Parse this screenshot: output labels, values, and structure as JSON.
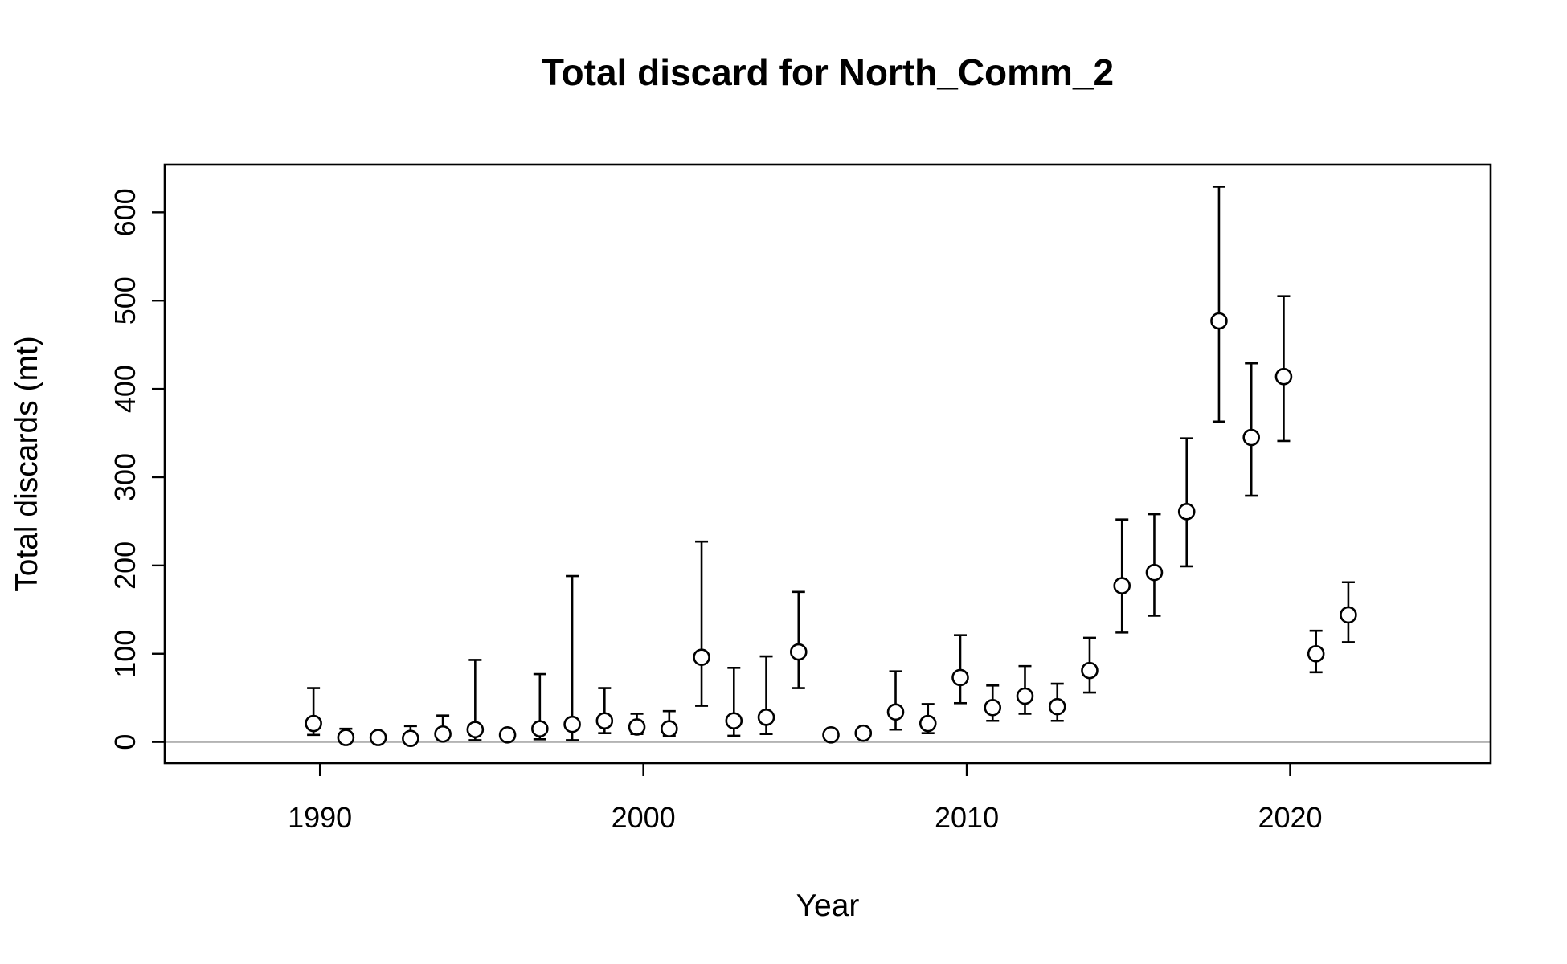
{
  "chart_data": {
    "type": "scatter",
    "title": "Total discard for North_Comm_2",
    "xlabel": "Year",
    "ylabel": "Total discards (mt)",
    "xlim": [
      1985.2,
      2026.2
    ],
    "ylim": [
      -24,
      654
    ],
    "x_ticks": [
      1990,
      2000,
      2010,
      2020
    ],
    "y_ticks": [
      0,
      100,
      200,
      300,
      400,
      500,
      600
    ],
    "grid": false,
    "legend": "none",
    "reference_line": {
      "y": 0,
      "color": "#b3b3b3"
    },
    "colors": {
      "point_fill": "#ffffff",
      "point_stroke": "#000000",
      "errorbar": "#000000"
    },
    "series": [
      {
        "x": [
          1989.8,
          1990.8,
          1991.8,
          1992.8,
          1993.8,
          1994.8,
          1995.8,
          1996.8,
          1997.8,
          1998.8,
          1999.8,
          2000.8,
          2001.8,
          2002.8,
          2003.8,
          2004.8,
          2005.8,
          2006.8,
          2007.8,
          2008.8,
          2009.8,
          2010.8,
          2011.8,
          2012.8,
          2013.8,
          2014.8,
          2015.8,
          2016.8,
          2017.8,
          2018.8,
          2019.8,
          2020.8,
          2021.8
        ],
        "y": [
          21,
          5,
          5,
          4,
          9,
          14,
          8,
          15,
          20,
          24,
          17,
          15,
          96,
          24,
          28,
          102,
          8,
          10,
          34,
          21,
          73,
          39,
          52,
          40,
          81,
          177,
          192,
          261,
          477,
          345,
          414,
          100,
          144
        ],
        "lower": [
          8,
          2,
          2,
          1,
          3,
          2,
          4,
          3,
          2,
          10,
          9,
          7,
          41,
          7,
          9,
          61,
          5,
          6,
          14,
          10,
          44,
          24,
          32,
          24,
          56,
          124,
          143,
          199,
          363,
          279,
          341,
          79,
          113
        ],
        "upper": [
          61,
          15,
          9,
          18,
          30,
          93,
          13,
          77,
          188,
          61,
          32,
          35,
          227,
          84,
          97,
          170,
          12,
          15,
          80,
          43,
          121,
          64,
          86,
          66,
          118,
          252,
          258,
          344,
          629,
          429,
          505,
          126,
          181
        ]
      }
    ]
  }
}
